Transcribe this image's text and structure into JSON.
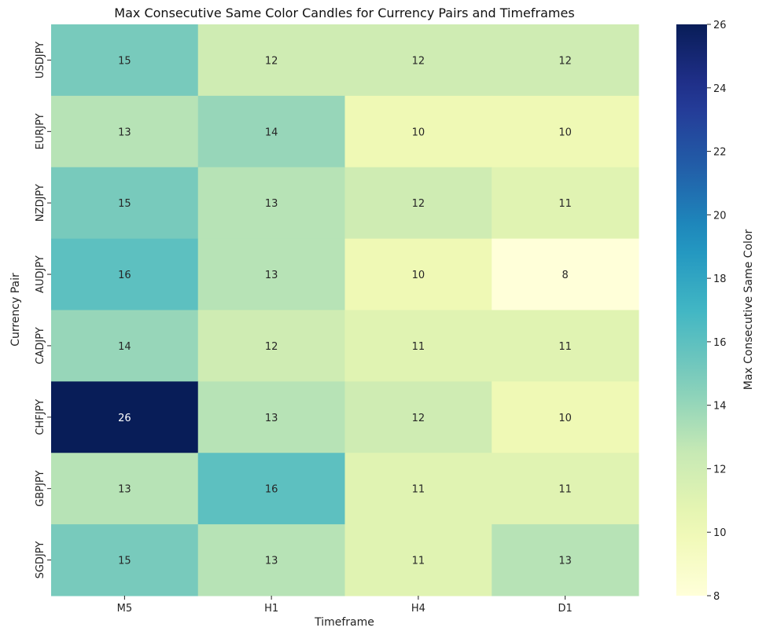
{
  "chart_data": {
    "type": "heatmap",
    "title": "Max Consecutive Same Color Candles for Currency Pairs and Timeframes",
    "xlabel": "Timeframe",
    "ylabel": "Currency Pair",
    "colorbar_label": "Max Consecutive Same Color",
    "colormap": "YlGnBu",
    "x_categories": [
      "M5",
      "H1",
      "H4",
      "D1"
    ],
    "y_categories": [
      "USDJPY",
      "EURJPY",
      "NZDJPY",
      "AUDJPY",
      "CADJPY",
      "CHFJPY",
      "GBPJPY",
      "SGDJPY"
    ],
    "values": [
      [
        15,
        12,
        12,
        12
      ],
      [
        13,
        14,
        10,
        10
      ],
      [
        15,
        13,
        12,
        11
      ],
      [
        16,
        13,
        10,
        8
      ],
      [
        14,
        12,
        11,
        11
      ],
      [
        26,
        13,
        12,
        10
      ],
      [
        13,
        16,
        11,
        11
      ],
      [
        15,
        13,
        11,
        13
      ]
    ],
    "vmin": 8,
    "vmax": 26,
    "colorbar_ticks": [
      8,
      10,
      12,
      14,
      16,
      18,
      20,
      22,
      24,
      26
    ],
    "annotated": true
  }
}
